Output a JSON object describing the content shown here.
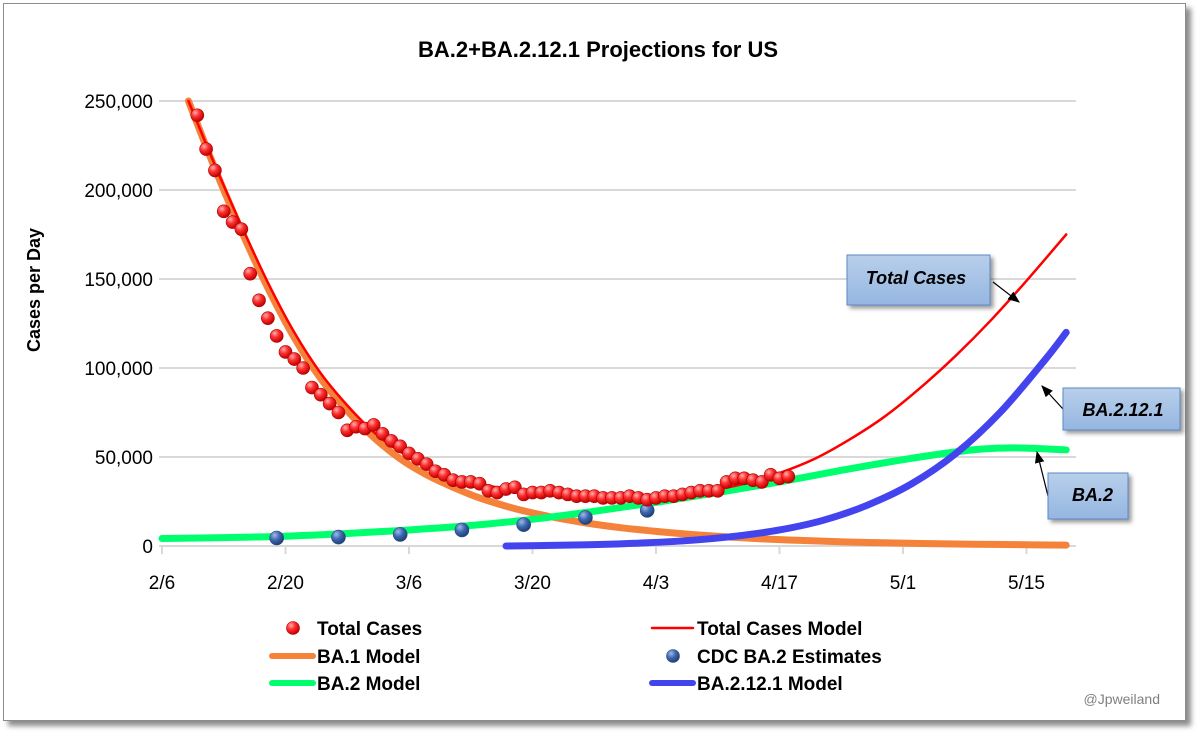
{
  "chart_data": {
    "type": "line",
    "title": "BA.2+BA.2.12.1 Projections for US",
    "xlabel": "",
    "ylabel": "Cases per Day",
    "x_start_date": "2/6",
    "x_range_days": [
      0,
      102.5
    ],
    "ylim": [
      0,
      250000
    ],
    "y_ticks": [
      0,
      50000,
      100000,
      150000,
      200000,
      250000
    ],
    "y_tick_labels": [
      "0",
      "50,000",
      "100,000",
      "150,000",
      "200,000",
      "250,000"
    ],
    "x_ticks_days": [
      0,
      14,
      28,
      42,
      56,
      70,
      84,
      98
    ],
    "x_tick_labels": [
      "2/6",
      "2/20",
      "3/6",
      "3/20",
      "4/3",
      "4/17",
      "5/1",
      "5/15"
    ],
    "grid": "horizontal",
    "legend_position": "bottom",
    "series": [
      {
        "name": "Total Cases",
        "kind": "scatter",
        "color": "#ff2020",
        "x_days": [
          4,
          5,
          6,
          7,
          8,
          9,
          10,
          11,
          12,
          13,
          14,
          15,
          16,
          17,
          18,
          19,
          20,
          21,
          22,
          23,
          24,
          25,
          26,
          27,
          28,
          29,
          30,
          31,
          32,
          33,
          34,
          35,
          36,
          37,
          38,
          39,
          40,
          41,
          42,
          43,
          44,
          45,
          46,
          47,
          48,
          49,
          50,
          51,
          52,
          53,
          54,
          55,
          56,
          57,
          58,
          59,
          60,
          61,
          62,
          63,
          64,
          65,
          66,
          67,
          68,
          69,
          70,
          71
        ],
        "values": [
          242000,
          223000,
          211000,
          188000,
          182000,
          178000,
          153000,
          138000,
          128000,
          118000,
          109000,
          105000,
          100000,
          89000,
          85000,
          80000,
          75000,
          65000,
          67000,
          66000,
          68000,
          63000,
          59000,
          56000,
          52000,
          49000,
          46000,
          42000,
          40000,
          37000,
          36000,
          36000,
          35000,
          31000,
          30000,
          32000,
          33000,
          29000,
          30000,
          30000,
          31000,
          30000,
          29000,
          28000,
          28000,
          28000,
          27000,
          27000,
          27000,
          28000,
          27000,
          26000,
          27000,
          28000,
          28000,
          29000,
          30000,
          31000,
          31000,
          31000,
          36000,
          38000,
          38000,
          37000,
          36000,
          40000,
          38000,
          39000
        ]
      },
      {
        "name": "Total Cases Model",
        "kind": "line",
        "color": "#ff0000",
        "x_days": [
          3,
          6,
          9,
          12,
          15,
          18,
          21,
          24,
          27,
          30,
          33,
          36,
          39,
          42,
          46,
          50,
          54,
          58,
          62,
          66,
          70,
          74,
          78,
          82,
          86,
          90,
          94,
          98,
          102.5
        ],
        "values": [
          250000,
          214000,
          180000,
          148000,
          120000,
          97000,
          79000,
          64000,
          53000,
          45000,
          39000,
          35000,
          32000,
          30000,
          28500,
          27500,
          27500,
          28500,
          31000,
          35000,
          41000,
          49000,
          60000,
          73000,
          89000,
          107000,
          127000,
          149000,
          175000
        ]
      },
      {
        "name": "BA.1 Model",
        "kind": "line",
        "color": "#f5823a",
        "x_days": [
          3,
          6,
          9,
          12,
          15,
          18,
          21,
          24,
          27,
          30,
          33,
          36,
          40,
          44,
          48,
          52,
          56,
          60,
          64,
          68,
          72,
          76,
          80,
          86,
          92,
          98,
          102.5
        ],
        "values": [
          250000,
          212000,
          177000,
          145000,
          117000,
          94000,
          76000,
          61000,
          49000,
          40000,
          33000,
          27000,
          21000,
          16500,
          13000,
          10300,
          8200,
          6500,
          5100,
          4000,
          3200,
          2500,
          2000,
          1400,
          1000,
          700,
          500
        ]
      },
      {
        "name": "CDC BA.2 Estimates",
        "kind": "scatter",
        "color": "#3a5f9e",
        "x_days": [
          13,
          20,
          27,
          34,
          41,
          48,
          55
        ],
        "values": [
          4500,
          5000,
          6500,
          9000,
          12000,
          16000,
          20000
        ]
      },
      {
        "name": "BA.2 Model",
        "kind": "line",
        "color": "#00ff6e",
        "x_days": [
          0,
          7,
          14,
          21,
          28,
          35,
          42,
          49,
          56,
          63,
          70,
          77,
          84,
          91,
          95,
          98,
          102.5
        ],
        "values": [
          4200,
          4700,
          5500,
          7000,
          9000,
          11500,
          15000,
          19500,
          24500,
          30000,
          36000,
          42500,
          48500,
          53500,
          55000,
          55000,
          54000
        ]
      },
      {
        "name": "BA.2.12.1 Model",
        "kind": "line",
        "color": "#4444ee",
        "x_days": [
          39,
          45,
          50,
          55,
          60,
          65,
          70,
          75,
          80,
          85,
          90,
          95,
          100,
          102.5
        ],
        "values": [
          0,
          400,
          900,
          1800,
          3200,
          5500,
          9000,
          14500,
          23000,
          35000,
          52000,
          75000,
          104000,
          120000
        ]
      }
    ],
    "annotations": [
      {
        "text": "Total Cases",
        "points_to": "Total Cases Model"
      },
      {
        "text": "BA.2.12.1",
        "points_to": "BA.2.12.1 Model"
      },
      {
        "text": "BA.2",
        "points_to": "BA.2 Model"
      }
    ]
  },
  "legend": [
    {
      "label": "Total Cases",
      "type": "dot",
      "color": "#ff2020"
    },
    {
      "label": "Total Cases Model",
      "type": "thin-line",
      "color": "#ff0000"
    },
    {
      "label": "BA.1 Model",
      "type": "thick-line",
      "color": "#f5823a"
    },
    {
      "label": "CDC BA.2 Estimates",
      "type": "dot",
      "color": "#3a5f9e"
    },
    {
      "label": "BA.2 Model",
      "type": "thick-line",
      "color": "#00ff6e"
    },
    {
      "label": "BA.2.12.1 Model",
      "type": "thick-line",
      "color": "#4444ee"
    }
  ],
  "watermark": "@Jpweiland"
}
